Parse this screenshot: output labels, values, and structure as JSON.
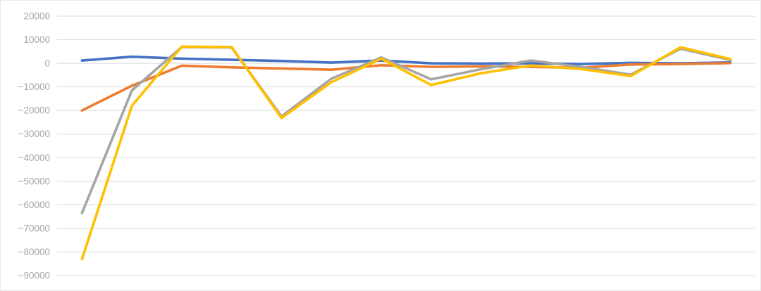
{
  "chart_data": {
    "type": "line",
    "title": "",
    "xlabel": "",
    "ylabel": "",
    "ylim": [
      -90000,
      20000
    ],
    "grid": true,
    "legend_position": "none",
    "x_tick_labels_visible": false,
    "num_points": 14,
    "y_ticks": [
      20000,
      10000,
      0,
      -10000,
      -20000,
      -30000,
      -40000,
      -50000,
      -60000,
      -70000,
      -80000,
      -90000
    ],
    "y_tick_labels": [
      "20000",
      "10000",
      "0",
      "−10000",
      "−20000",
      "−30000",
      "−40000",
      "−50000",
      "−60000",
      "−70000",
      "−80000",
      "−90000"
    ],
    "series": [
      {
        "name": "blue",
        "color": "#4472C4",
        "values": [
          1200,
          2800,
          2000,
          1500,
          1000,
          300,
          1200,
          0,
          -100,
          0,
          -300,
          200,
          0,
          400
        ]
      },
      {
        "name": "orange",
        "color": "#ED7D31",
        "values": [
          -20000,
          -9500,
          -1000,
          -1700,
          -2200,
          -2700,
          -800,
          -1500,
          -1300,
          -1500,
          -1900,
          -500,
          -300,
          100
        ]
      },
      {
        "name": "gray",
        "color": "#A5A5A5",
        "values": [
          -63500,
          -11500,
          6900,
          6700,
          -22500,
          -6500,
          2500,
          -6800,
          -2500,
          1200,
          -1500,
          -4800,
          6200,
          1400
        ]
      },
      {
        "name": "yellow",
        "color": "#FFC000",
        "values": [
          -83000,
          -18000,
          7100,
          6900,
          -23200,
          -8000,
          2000,
          -9200,
          -4200,
          -900,
          -2400,
          -5400,
          6800,
          1800
        ]
      }
    ]
  },
  "colors": {
    "gridline": "#d9d9d9",
    "tick_label": "#a6a6a6",
    "background": "#ffffff",
    "card_border": "#e9e9e9"
  }
}
